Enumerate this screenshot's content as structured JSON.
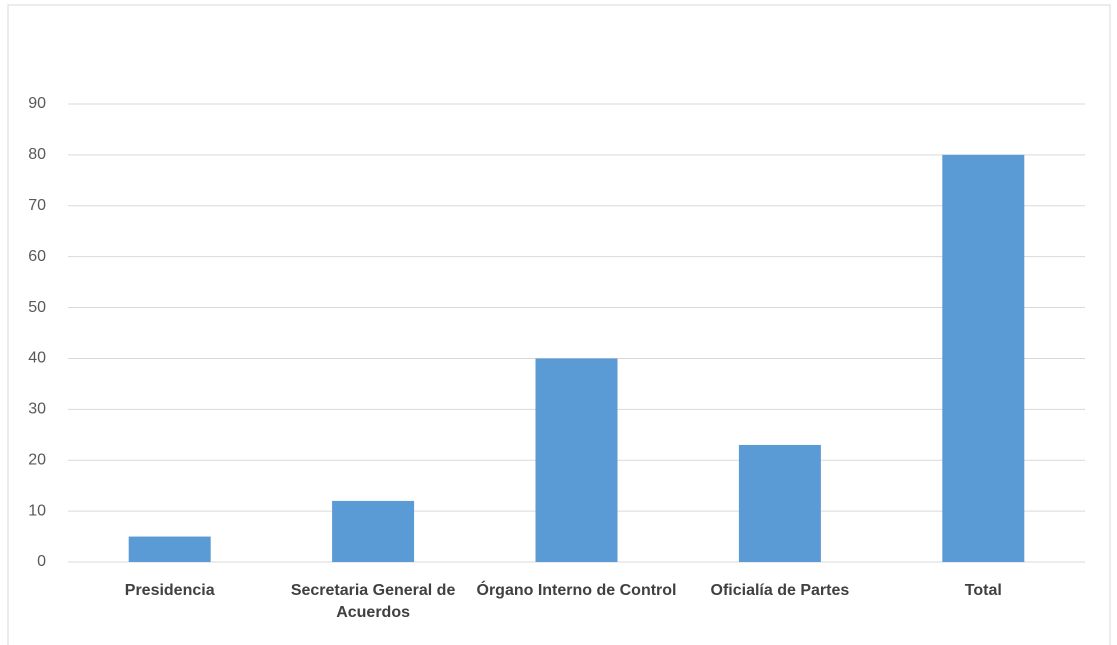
{
  "chart_data": {
    "type": "bar",
    "categories": [
      "Presidencia",
      "Secretaria General de Acuerdos",
      "Órgano Interno de Control",
      "Oficialía de Partes",
      "Total"
    ],
    "values": [
      5,
      12,
      40,
      23,
      80
    ],
    "color": "#5b9bd5",
    "ylim": [
      0,
      90
    ],
    "yticks": [
      0,
      10,
      20,
      30,
      40,
      50,
      60,
      70,
      80,
      90
    ],
    "grid": true
  }
}
